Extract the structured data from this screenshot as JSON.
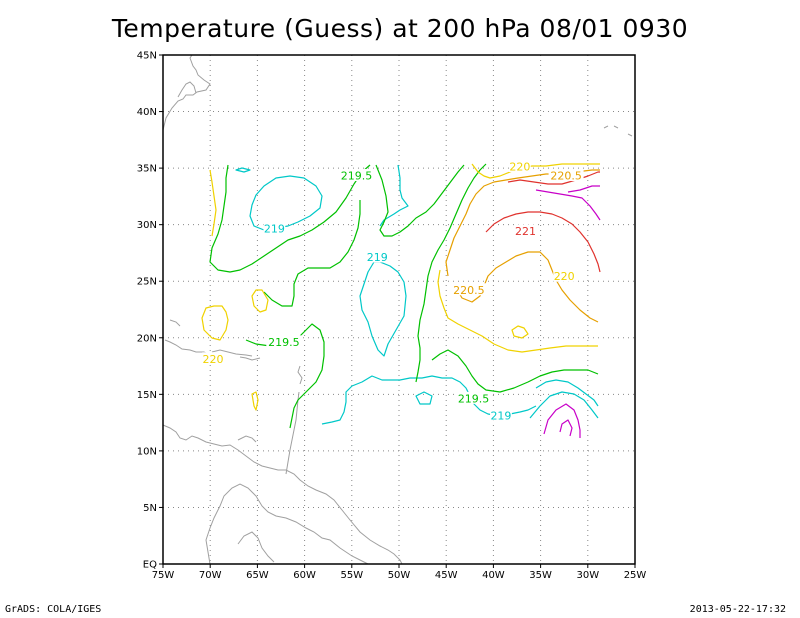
{
  "title": "Temperature (Guess) at 200 hPa 08/01 0930",
  "footer_left": "GrADS: COLA/IGES",
  "footer_right": "2013-05-22-17:32",
  "axes": {
    "x_ticks": [
      "75W",
      "70W",
      "65W",
      "60W",
      "55W",
      "50W",
      "45W",
      "40W",
      "35W",
      "30W",
      "25W"
    ],
    "y_ticks": [
      "EQ",
      "5N",
      "10N",
      "15N",
      "20N",
      "25N",
      "30N",
      "35N",
      "40N",
      "45N"
    ],
    "xlim": [
      -75,
      -25
    ],
    "ylim": [
      0,
      45
    ]
  },
  "colors": {
    "c219_old": "#00c8c8",
    "c219": "#00c8c8",
    "c219_5": "#00c000",
    "c220": "#f0d200",
    "c220_5": "#e6a000",
    "c221": "#e0322d",
    "c221_5": "#c800c8",
    "c218_5": "#0096c8",
    "coast": "#a0a0a0"
  },
  "contour_labels": [
    {
      "text": "219.5",
      "lon": -54.5,
      "lat": 34.3,
      "color": "c219_5"
    },
    {
      "text": "219",
      "lon": -63.2,
      "lat": 29.6,
      "color": "c219"
    },
    {
      "text": "219",
      "lon": -52.3,
      "lat": 27.1,
      "color": "c219"
    },
    {
      "text": "220",
      "lon": -37.2,
      "lat": 35.1,
      "color": "c220"
    },
    {
      "text": "220.5",
      "lon": -32.3,
      "lat": 34.3,
      "color": "c220_5"
    },
    {
      "text": "221",
      "lon": -36.6,
      "lat": 29.4,
      "color": "c221"
    },
    {
      "text": "220",
      "lon": -32.5,
      "lat": 25.4,
      "color": "c220"
    },
    {
      "text": "220.5",
      "lon": -42.6,
      "lat": 24.2,
      "color": "c220_5"
    },
    {
      "text": "219.5",
      "lon": -62.2,
      "lat": 19.6,
      "color": "c219_5"
    },
    {
      "text": "220",
      "lon": -69.7,
      "lat": 18.1,
      "color": "c220"
    },
    {
      "text": "219.5",
      "lon": -42.1,
      "lat": 14.6,
      "color": "c219_5"
    },
    {
      "text": "219",
      "lon": -39.2,
      "lat": 13.1,
      "color": "c219"
    }
  ]
}
